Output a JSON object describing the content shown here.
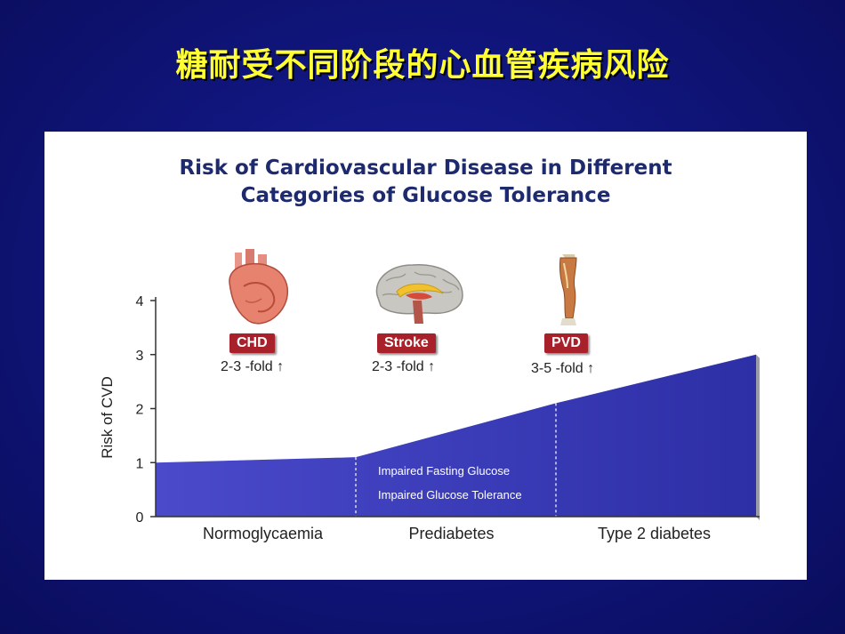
{
  "slide": {
    "title": "糖耐受不同阶段的心血管疾病风险"
  },
  "chart_data": {
    "type": "area",
    "title_line1": "Risk of Cardiovascular Disease in Different",
    "title_line2": "Categories of Glucose Tolerance",
    "ylabel": "Risk of CVD",
    "ylim": [
      0,
      4
    ],
    "yticks": [
      "0",
      "1",
      "2",
      "3",
      "4"
    ],
    "categories": [
      "Normoglycaemia",
      "Prediabetes",
      "Type 2 diabetes"
    ],
    "series": [
      {
        "name": "Risk of CVD",
        "x": [
          0,
          1,
          2,
          3
        ],
        "values": [
          1.0,
          1.1,
          2.1,
          3.0
        ]
      }
    ],
    "prediabetes_labels": [
      "Impaired Fasting Glucose",
      "Impaired Glucose Tolerance"
    ],
    "annotations": [
      {
        "tag": "CHD",
        "fold": "2-3 -fold ↑",
        "icon": "heart-icon"
      },
      {
        "tag": "Stroke",
        "fold": "2-3 -fold ↑",
        "icon": "brain-icon"
      },
      {
        "tag": "PVD",
        "fold": "3-5 -fold ↑",
        "icon": "leg-icon"
      }
    ],
    "fill_color": "#4a4acb",
    "fill_dark": "#2d2fa6"
  }
}
